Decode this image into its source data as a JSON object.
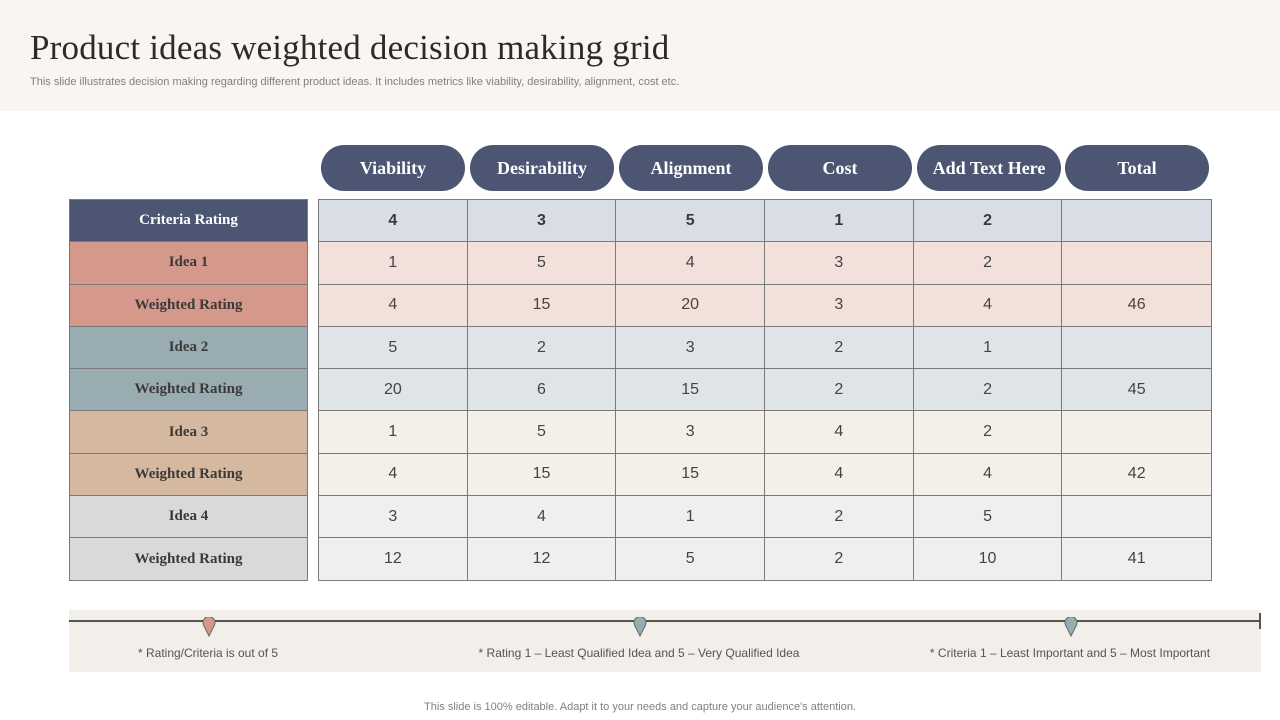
{
  "header": {
    "title": "Product ideas weighted decision making grid",
    "subtitle": "This slide illustrates decision making regarding different product ideas. It includes metrics like viability, desirability, alignment, cost etc."
  },
  "columns": [
    "Viability",
    "Desirability",
    "Alignment",
    "Cost",
    "Add Text Here",
    "Total"
  ],
  "rows": [
    {
      "label": "Criteria Rating",
      "values": [
        "4",
        "3",
        "5",
        "1",
        "2",
        ""
      ]
    },
    {
      "label": "Idea 1",
      "values": [
        "1",
        "5",
        "4",
        "3",
        "2",
        ""
      ]
    },
    {
      "label": "Weighted Rating",
      "values": [
        "4",
        "15",
        "20",
        "3",
        "4",
        "46"
      ]
    },
    {
      "label": "Idea 2",
      "values": [
        "5",
        "2",
        "3",
        "2",
        "1",
        ""
      ]
    },
    {
      "label": "Weighted Rating",
      "values": [
        "20",
        "6",
        "15",
        "2",
        "2",
        "45"
      ]
    },
    {
      "label": "Idea 3",
      "values": [
        "1",
        "5",
        "3",
        "4",
        "2",
        ""
      ]
    },
    {
      "label": "Weighted Rating",
      "values": [
        "4",
        "15",
        "15",
        "4",
        "4",
        "42"
      ]
    },
    {
      "label": "Idea 4",
      "values": [
        "3",
        "4",
        "1",
        "2",
        "5",
        ""
      ]
    },
    {
      "label": "Weighted Rating",
      "values": [
        "12",
        "12",
        "5",
        "2",
        "10",
        "41"
      ]
    }
  ],
  "notes": [
    "* Rating/Criteria  is out of 5",
    "* Rating 1 – Least Qualified  Idea  and 5 – Very Qualified  Idea",
    "* Criteria 1 – Least Important  and 5 – Most Important"
  ],
  "colors": {
    "header_navy": "#4c5673",
    "idea1": "#d4998a",
    "idea2": "#98acb2",
    "idea3": "#d4b89f",
    "idea4": "#d9d9d9"
  },
  "footer": "This slide is 100% editable. Adapt it to your needs and capture your audience's attention."
}
